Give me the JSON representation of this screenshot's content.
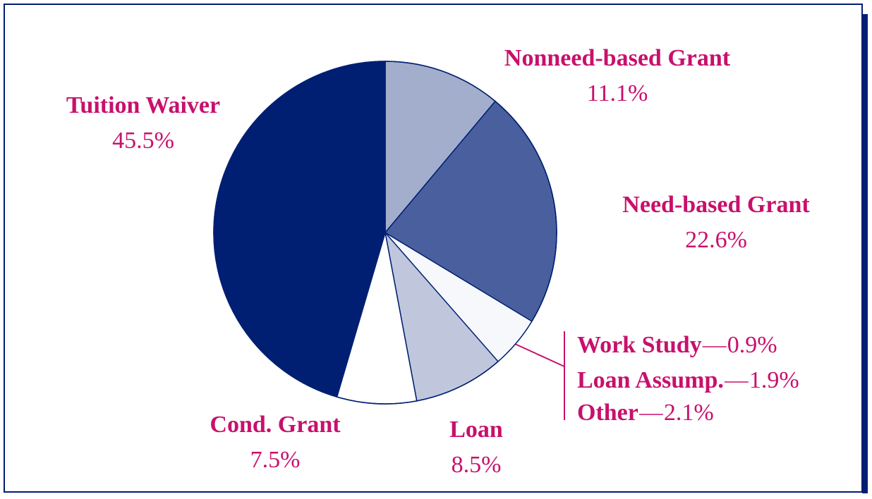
{
  "chart_data": {
    "type": "pie",
    "categories": [
      "Nonneed-based Grant",
      "Need-based Grant",
      "Other",
      "Loan Assump.",
      "Work Study",
      "Loan",
      "Cond. Grant",
      "Tuition Waiver"
    ],
    "values": [
      11.1,
      22.6,
      2.1,
      1.9,
      0.9,
      8.5,
      7.5,
      45.5
    ],
    "value_labels": [
      "11.1%",
      "22.6%",
      "2.1%",
      "1.9%",
      "0.9%",
      "8.5%",
      "7.5%",
      "45.5%"
    ],
    "colors": [
      "#a3aecd",
      "#4a5f9e",
      "#f6f8fc",
      "#f6f8fc",
      "#f6f8fc",
      "#c0c7dd",
      "#ffffff",
      "#001f73"
    ]
  }
}
